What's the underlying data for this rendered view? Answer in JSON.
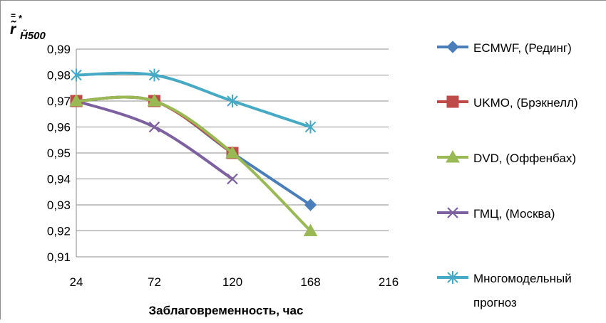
{
  "chart_data": {
    "type": "line",
    "x": [
      24,
      72,
      120,
      168,
      216
    ],
    "ylim": [
      0.91,
      0.99
    ],
    "y_ticks": [
      "0,91",
      "0,92",
      "0,93",
      "0,94",
      "0,95",
      "0,96",
      "0,97",
      "0,98",
      "0,99"
    ],
    "x_ticks": [
      "24",
      "72",
      "120",
      "168",
      "216"
    ],
    "xlabel": "Заблаговременность, час",
    "ylabel_main": "r̃",
    "ylabel_sub": "H̃500",
    "grid": true,
    "legend_position": "right",
    "series": [
      {
        "name": "ECMWF, (Рединг)",
        "color": "#4a7ebb",
        "marker": "diamond",
        "values": [
          0.97,
          0.97,
          0.95,
          0.93,
          null
        ]
      },
      {
        "name": "UKMO, (Брэкнелл)",
        "color": "#be4b48",
        "marker": "square",
        "values": [
          0.97,
          0.97,
          0.95,
          null,
          null
        ]
      },
      {
        "name": "DVD, (Оффенбах)",
        "color": "#98b954",
        "marker": "triangle",
        "values": [
          0.97,
          0.97,
          0.95,
          0.92,
          null
        ]
      },
      {
        "name": "ГМЦ, (Москва)",
        "color": "#7d60a0",
        "marker": "x",
        "values": [
          0.97,
          0.96,
          0.94,
          null,
          null
        ]
      },
      {
        "name": "Многомодельный прогноз",
        "name_lines": [
          "Многомодельный",
          "прогноз"
        ],
        "color": "#46aac5",
        "marker": "star",
        "values": [
          0.98,
          0.98,
          0.97,
          0.96,
          null
        ]
      }
    ]
  }
}
